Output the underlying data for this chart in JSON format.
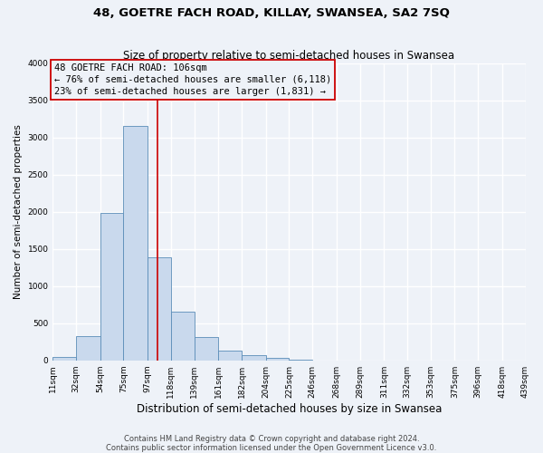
{
  "title": "48, GOETRE FACH ROAD, KILLAY, SWANSEA, SA2 7SQ",
  "subtitle": "Size of property relative to semi-detached houses in Swansea",
  "xlabel": "Distribution of semi-detached houses by size in Swansea",
  "ylabel": "Number of semi-detached properties",
  "bar_color": "#c9d9ed",
  "bar_edge_color": "#5b8db8",
  "bin_edges": [
    11,
    32,
    54,
    75,
    97,
    118,
    139,
    161,
    182,
    204,
    225,
    246,
    268,
    289,
    311,
    332,
    353,
    375,
    396,
    418,
    439
  ],
  "bin_labels": [
    "11sqm",
    "32sqm",
    "54sqm",
    "75sqm",
    "97sqm",
    "118sqm",
    "139sqm",
    "161sqm",
    "182sqm",
    "204sqm",
    "225sqm",
    "246sqm",
    "268sqm",
    "289sqm",
    "311sqm",
    "332sqm",
    "353sqm",
    "375sqm",
    "396sqm",
    "418sqm",
    "439sqm"
  ],
  "bar_heights": [
    50,
    330,
    1980,
    3150,
    1390,
    650,
    310,
    135,
    75,
    30,
    5,
    0,
    0,
    0,
    0,
    0,
    0,
    0,
    0,
    0
  ],
  "vline_color": "#cc0000",
  "vline_x": 106,
  "annotation_box_title": "48 GOETRE FACH ROAD: 106sqm",
  "annotation_line1": "← 76% of semi-detached houses are smaller (6,118)",
  "annotation_line2": "23% of semi-detached houses are larger (1,831) →",
  "annotation_box_edge_color": "#cc0000",
  "ylim": [
    0,
    4000
  ],
  "yticks": [
    0,
    500,
    1000,
    1500,
    2000,
    2500,
    3000,
    3500,
    4000
  ],
  "footer1": "Contains HM Land Registry data © Crown copyright and database right 2024.",
  "footer2": "Contains public sector information licensed under the Open Government Licence v3.0.",
  "background_color": "#eef2f8",
  "grid_color": "#ffffff",
  "title_fontsize": 9.5,
  "subtitle_fontsize": 8.5,
  "xlabel_fontsize": 8.5,
  "ylabel_fontsize": 7.5,
  "tick_fontsize": 6.5,
  "annotation_fontsize": 7.5,
  "footer_fontsize": 6.0
}
